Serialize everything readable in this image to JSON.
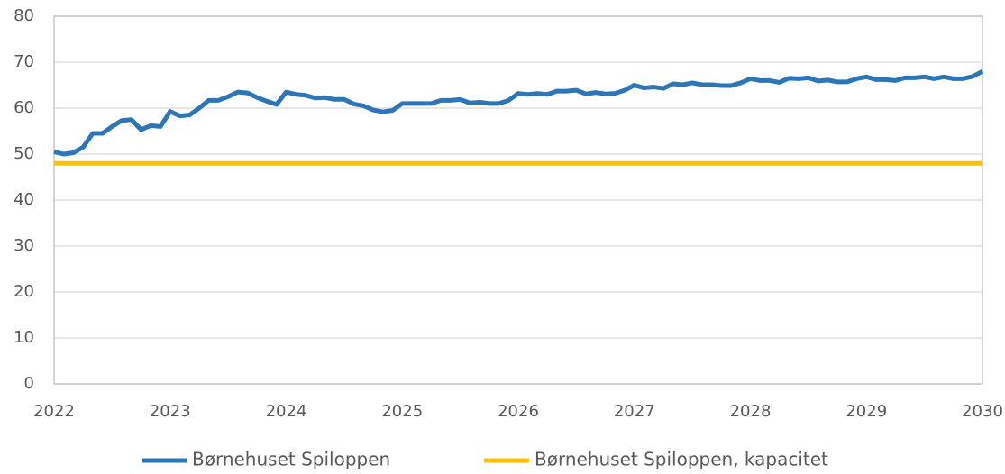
{
  "chart_data": {
    "type": "line",
    "x": [
      2022,
      2022.083,
      2022.167,
      2022.25,
      2022.333,
      2022.417,
      2022.5,
      2022.583,
      2022.667,
      2022.75,
      2022.833,
      2022.917,
      2023,
      2023.083,
      2023.167,
      2023.25,
      2023.333,
      2023.417,
      2023.5,
      2023.583,
      2023.667,
      2023.75,
      2023.833,
      2023.917,
      2024,
      2024.083,
      2024.167,
      2024.25,
      2024.333,
      2024.417,
      2024.5,
      2024.583,
      2024.667,
      2024.75,
      2024.833,
      2024.917,
      2025,
      2025.083,
      2025.167,
      2025.25,
      2025.333,
      2025.417,
      2025.5,
      2025.583,
      2025.667,
      2025.75,
      2025.833,
      2025.917,
      2026,
      2026.083,
      2026.167,
      2026.25,
      2026.333,
      2026.417,
      2026.5,
      2026.583,
      2026.667,
      2026.75,
      2026.833,
      2026.917,
      2027,
      2027.083,
      2027.167,
      2027.25,
      2027.333,
      2027.417,
      2027.5,
      2027.583,
      2027.667,
      2027.75,
      2027.833,
      2027.917,
      2028,
      2028.083,
      2028.167,
      2028.25,
      2028.333,
      2028.417,
      2028.5,
      2028.583,
      2028.667,
      2028.75,
      2028.833,
      2028.917,
      2029,
      2029.083,
      2029.167,
      2029.25,
      2029.333,
      2029.417,
      2029.5,
      2029.583,
      2029.667,
      2029.75,
      2029.833,
      2029.917,
      2030
    ],
    "series": [
      {
        "name": "Børnehuset Spiloppen",
        "color": "#2e75b6",
        "values": [
          50.5,
          50,
          50.3,
          51.5,
          54.5,
          54.5,
          56,
          57.3,
          57.5,
          55.3,
          56.2,
          56,
          59.3,
          58.3,
          58.5,
          60,
          61.7,
          61.7,
          62.5,
          63.5,
          63.3,
          62.3,
          61.5,
          60.8,
          63.5,
          63,
          62.8,
          62.2,
          62.3,
          61.9,
          61.9,
          60.9,
          60.5,
          59.6,
          59.2,
          59.5,
          61,
          61,
          61,
          61,
          61.7,
          61.7,
          61.9,
          61.1,
          61.3,
          61,
          61,
          61.7,
          63.2,
          63,
          63.2,
          63,
          63.7,
          63.7,
          63.9,
          63.1,
          63.4,
          63.1,
          63.2,
          63.9,
          65,
          64.4,
          64.6,
          64.3,
          65.3,
          65.1,
          65.5,
          65.1,
          65.1,
          64.9,
          64.9,
          65.5,
          66.4,
          66,
          66,
          65.6,
          66.5,
          66.4,
          66.6,
          65.9,
          66.1,
          65.7,
          65.7,
          66.4,
          66.8,
          66.2,
          66.2,
          66,
          66.6,
          66.6,
          66.8,
          66.4,
          66.8,
          66.4,
          66.4,
          66.9,
          68
        ]
      },
      {
        "name": "Børnehuset Spiloppen, kapacitet",
        "color": "#ffc000",
        "x": [
          2022,
          2030
        ],
        "values": [
          48,
          48
        ]
      }
    ],
    "xlim": [
      2022,
      2030
    ],
    "xticks": [
      2022,
      2023,
      2024,
      2025,
      2026,
      2027,
      2028,
      2029,
      2030
    ],
    "ylim": [
      0,
      80
    ],
    "yticks": [
      0,
      10,
      20,
      30,
      40,
      50,
      60,
      70,
      80
    ],
    "grid": true,
    "legend": "bottom"
  }
}
